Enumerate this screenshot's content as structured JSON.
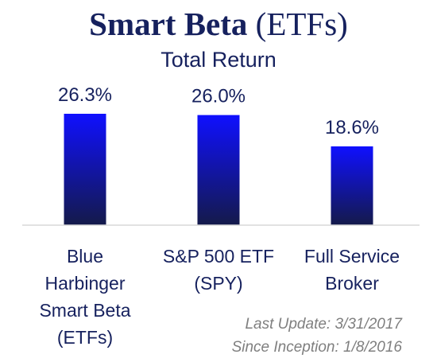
{
  "header": {
    "title_bold": "Smart Beta",
    "title_rest": "(ETFs)",
    "subtitle": "Total Return"
  },
  "chart_data": {
    "type": "bar",
    "title": "Smart Beta (ETFs)",
    "subtitle": "Total Return",
    "categories": [
      "Blue Harbinger Smart Beta (ETFs)",
      "S&P 500 ETF (SPY)",
      "Full Service Broker"
    ],
    "category_lines": [
      [
        "Blue",
        "Harbinger",
        "Smart Beta",
        "(ETFs)"
      ],
      [
        "S&P 500 ETF",
        "(SPY)"
      ],
      [
        "Full Service",
        "Broker"
      ]
    ],
    "values": [
      26.3,
      26.0,
      18.6
    ],
    "value_labels": [
      "26.3%",
      "26.0%",
      "18.6%"
    ],
    "unit": "%",
    "ylim": [
      0,
      30
    ],
    "grid": false,
    "legend": "none",
    "bar_gradient": [
      "#1010ff",
      "#141a4a"
    ],
    "axis_color": "#d9d9d9",
    "text_color": "#16215e"
  },
  "footer": {
    "last_update": "Last Update: 3/31/2017",
    "since_inception": "Since Inception: 1/8/2016"
  }
}
